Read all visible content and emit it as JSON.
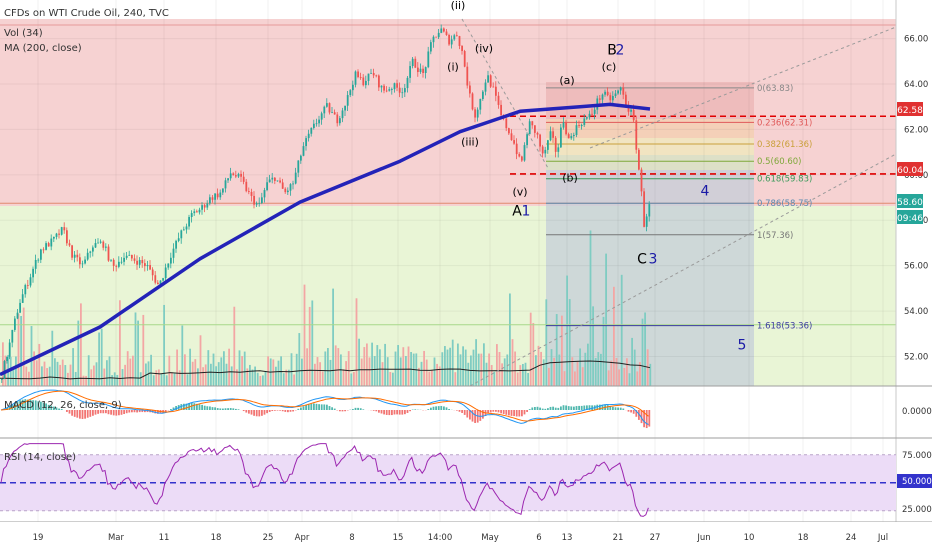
{
  "header": {
    "symbol_line": "CFDs on WTI Crude Oil, 240, TVC",
    "vol_label": "Vol (34)",
    "ma_label": "MA (200, close)"
  },
  "macd": {
    "label": "MACD (12, 26, close, 9)",
    "zero_label": "0.0000"
  },
  "rsi": {
    "label": "RSI (14, close)",
    "levels": [
      "75.0000",
      "50.0000",
      "25.0000"
    ]
  },
  "price_badges": {
    "last": "58.60",
    "countdown": "09:46",
    "level_high": "62.58",
    "level_low": "60.04"
  },
  "colors": {
    "bull": "#26a69a",
    "bear": "#ef5350",
    "ma_line": "#2323b8",
    "resistance_dash": "#e00000",
    "red_zone": "#f6d2d2",
    "green_zone": "#e9f5d6",
    "fib_box": "#c4cdd8",
    "rsi_band": "#ecdcf7",
    "rsi_line": "#9c27b0"
  },
  "chart_data": {
    "type": "candlestick",
    "symbol": "CFDs on WTI Crude Oil",
    "interval": "240",
    "source": "TVC",
    "x_tick_labels": [
      "19",
      "Mar",
      "11",
      "18",
      "25",
      "Apr",
      "8",
      "15",
      "14:00",
      "May",
      "6",
      "13",
      "21",
      "27",
      "Jun",
      "10",
      "18",
      "24",
      "Jul"
    ],
    "y_tick_labels": [
      "52.00",
      "54.00",
      "56.00",
      "58.00",
      "60.00",
      "62.00",
      "64.00",
      "66.00"
    ],
    "ylim": [
      50.7,
      67.7
    ],
    "price_path": [
      [
        0,
        51.0
      ],
      [
        8,
        52.4
      ],
      [
        18,
        54.3
      ],
      [
        28,
        55.4
      ],
      [
        40,
        56.7
      ],
      [
        52,
        57.1
      ],
      [
        62,
        57.6
      ],
      [
        72,
        56.4
      ],
      [
        82,
        56.0
      ],
      [
        92,
        56.9
      ],
      [
        102,
        57.0
      ],
      [
        112,
        55.9
      ],
      [
        122,
        56.4
      ],
      [
        132,
        56.3
      ],
      [
        146,
        56.0
      ],
      [
        158,
        55.1
      ],
      [
        170,
        56.5
      ],
      [
        180,
        57.4
      ],
      [
        192,
        58.3
      ],
      [
        200,
        58.5
      ],
      [
        210,
        59.0
      ],
      [
        220,
        59.2
      ],
      [
        230,
        60.1
      ],
      [
        240,
        59.8
      ],
      [
        250,
        59.0
      ],
      [
        258,
        58.6
      ],
      [
        266,
        59.6
      ],
      [
        274,
        59.9
      ],
      [
        284,
        59.2
      ],
      [
        292,
        59.6
      ],
      [
        302,
        61.2
      ],
      [
        310,
        61.9
      ],
      [
        318,
        62.5
      ],
      [
        326,
        63.0
      ],
      [
        336,
        62.4
      ],
      [
        346,
        63.3
      ],
      [
        354,
        64.4
      ],
      [
        362,
        64.1
      ],
      [
        372,
        64.5
      ],
      [
        382,
        63.7
      ],
      [
        392,
        63.9
      ],
      [
        402,
        63.7
      ],
      [
        412,
        65.0
      ],
      [
        422,
        64.4
      ],
      [
        432,
        66.0
      ],
      [
        440,
        66.4
      ],
      [
        448,
        65.9
      ],
      [
        456,
        66.2
      ],
      [
        462,
        65.3
      ],
      [
        468,
        63.6
      ],
      [
        474,
        62.6
      ],
      [
        480,
        63.4
      ],
      [
        486,
        64.4
      ],
      [
        492,
        63.8
      ],
      [
        500,
        62.6
      ],
      [
        508,
        61.9
      ],
      [
        514,
        61.3
      ],
      [
        520,
        60.4
      ],
      [
        528,
        62.3
      ],
      [
        536,
        61.8
      ],
      [
        542,
        60.8
      ],
      [
        550,
        61.8
      ],
      [
        556,
        60.9
      ],
      [
        562,
        62.5
      ],
      [
        568,
        61.5
      ],
      [
        574,
        62.0
      ],
      [
        582,
        62.4
      ],
      [
        590,
        62.6
      ],
      [
        596,
        63.2
      ],
      [
        602,
        63.6
      ],
      [
        608,
        63.3
      ],
      [
        614,
        63.5
      ],
      [
        620,
        63.8
      ],
      [
        626,
        63.0
      ],
      [
        632,
        62.6
      ],
      [
        636,
        61.0
      ],
      [
        640,
        59.5
      ],
      [
        643,
        57.8
      ],
      [
        646,
        58.3
      ],
      [
        650,
        58.8
      ]
    ],
    "moving_average": {
      "name": "MA (200, close)",
      "points": [
        [
          0,
          51.2
        ],
        [
          100,
          53.3
        ],
        [
          200,
          56.3
        ],
        [
          300,
          58.8
        ],
        [
          400,
          60.6
        ],
        [
          460,
          61.9
        ],
        [
          520,
          62.8
        ],
        [
          580,
          63.0
        ],
        [
          610,
          63.1
        ],
        [
          650,
          62.9
        ]
      ]
    },
    "horizontal_levels": [
      {
        "price": 66.6,
        "style": "solid"
      },
      {
        "price": 58.75,
        "style": "solid"
      },
      {
        "price": 53.4,
        "style": "solid"
      },
      {
        "price": 62.58,
        "style": "dashed",
        "label": "62.58"
      },
      {
        "price": 60.04,
        "style": "dashed",
        "label": "60.04"
      }
    ],
    "fibonacci": [
      {
        "label": "0(63.83)",
        "ratio": 0,
        "price": 63.83
      },
      {
        "label": "0.236(62.31)",
        "ratio": 0.236,
        "price": 62.31
      },
      {
        "label": "0.382(61.36)",
        "ratio": 0.382,
        "price": 61.36
      },
      {
        "label": "0.5(60.60)",
        "ratio": 0.5,
        "price": 60.6
      },
      {
        "label": "0.618(59.83)",
        "ratio": 0.618,
        "price": 59.83
      },
      {
        "label": "0.786(58.75)",
        "ratio": 0.786,
        "price": 58.75
      },
      {
        "label": "1(57.36)",
        "ratio": 1,
        "price": 57.36
      },
      {
        "label": "1.618(53.36)",
        "ratio": 1.618,
        "price": 53.36
      }
    ],
    "annotations": [
      {
        "text": "(ii)",
        "x": 458,
        "price": 67.3,
        "color": "#000000"
      },
      {
        "text": "(iv)",
        "x": 484,
        "price": 65.4,
        "color": "#000000"
      },
      {
        "text": "(i)",
        "x": 453,
        "price": 64.6,
        "color": "#000000"
      },
      {
        "text": "(iii)",
        "x": 470,
        "price": 61.3,
        "color": "#000000"
      },
      {
        "text": "(a)",
        "x": 567,
        "price": 64.0,
        "color": "#000000"
      },
      {
        "text": "(c)",
        "x": 609,
        "price": 64.6,
        "color": "#000000"
      },
      {
        "text": "(b)",
        "x": 570,
        "price": 59.7,
        "color": "#000000"
      },
      {
        "text": "(v)",
        "x": 520,
        "price": 59.1,
        "color": "#000000"
      },
      {
        "text": "B",
        "x": 612,
        "price": 65.3,
        "color": "#000000"
      },
      {
        "text": "2",
        "x": 620,
        "price": 65.3,
        "color": "#1a1aa6"
      },
      {
        "text": "A",
        "x": 517,
        "price": 58.2,
        "color": "#000000"
      },
      {
        "text": "1",
        "x": 526,
        "price": 58.2,
        "color": "#1a1aa6"
      },
      {
        "text": "4",
        "x": 705,
        "price": 59.1,
        "color": "#1a1aa6"
      },
      {
        "text": "C",
        "x": 642,
        "price": 56.1,
        "color": "#000000"
      },
      {
        "text": "3",
        "x": 653,
        "price": 56.1,
        "color": "#1a1aa6"
      },
      {
        "text": "5",
        "x": 742,
        "price": 52.3,
        "color": "#1a1aa6"
      }
    ],
    "rsi": {
      "ylim": [
        15,
        90
      ],
      "levels": [
        75,
        50,
        25
      ]
    }
  }
}
